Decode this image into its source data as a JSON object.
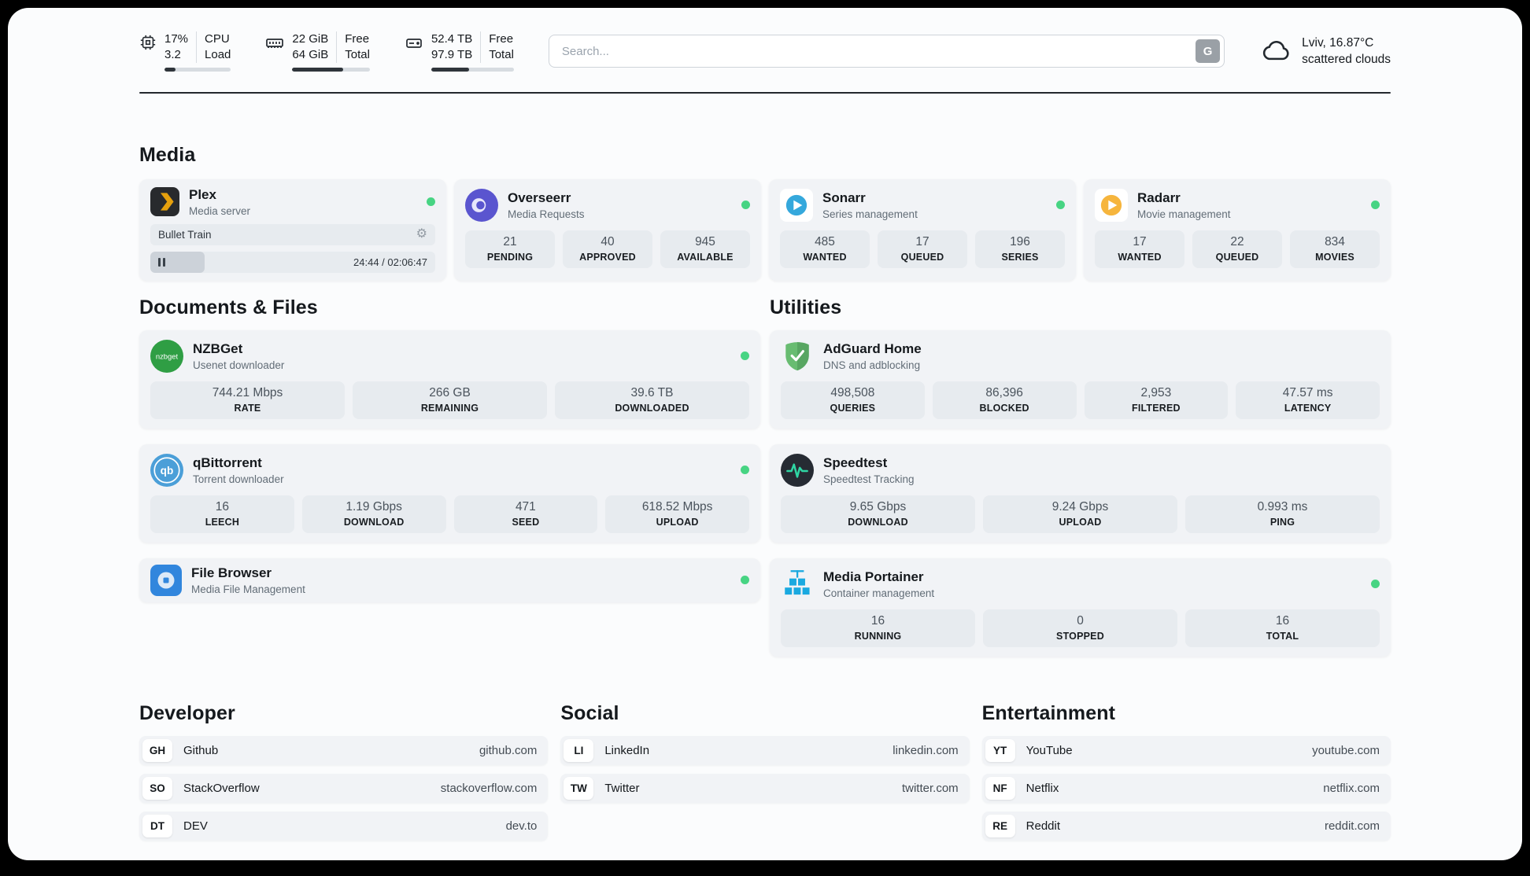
{
  "topbar": {
    "cpu": {
      "value_top": "17%",
      "value_bottom": "3.2",
      "label_top": "CPU",
      "label_bottom": "Load",
      "progress_percent": 17
    },
    "memory": {
      "value_top": "22 GiB",
      "value_bottom": "64 GiB",
      "label_top": "Free",
      "label_bottom": "Total",
      "progress_percent": 66
    },
    "storage": {
      "value_top": "52.4 TB",
      "value_bottom": "97.9 TB",
      "label_top": "Free",
      "label_bottom": "Total",
      "progress_percent": 46
    },
    "search": {
      "placeholder": "Search...",
      "engine_letter": "G"
    },
    "weather": {
      "location": "Lviv, 16.87°C",
      "condition": "scattered clouds"
    }
  },
  "sections": {
    "media": "Media",
    "documents": "Documents & Files",
    "utilities": "Utilities",
    "developer": "Developer",
    "social": "Social",
    "entertainment": "Entertainment"
  },
  "icons": {
    "gear": "⚙"
  },
  "apps": {
    "plex": {
      "name": "Plex",
      "subtitle": "Media server",
      "now_playing": "Bullet Train",
      "time": "24:44 / 02:06:47",
      "progress_percent": 19
    },
    "overseerr": {
      "name": "Overseerr",
      "subtitle": "Media Requests",
      "stats": [
        {
          "value": "21",
          "label": "PENDING"
        },
        {
          "value": "40",
          "label": "APPROVED"
        },
        {
          "value": "945",
          "label": "AVAILABLE"
        }
      ]
    },
    "sonarr": {
      "name": "Sonarr",
      "subtitle": "Series management",
      "stats": [
        {
          "value": "485",
          "label": "WANTED"
        },
        {
          "value": "17",
          "label": "QUEUED"
        },
        {
          "value": "196",
          "label": "SERIES"
        }
      ]
    },
    "radarr": {
      "name": "Radarr",
      "subtitle": "Movie management",
      "stats": [
        {
          "value": "17",
          "label": "WANTED"
        },
        {
          "value": "22",
          "label": "QUEUED"
        },
        {
          "value": "834",
          "label": "MOVIES"
        }
      ]
    },
    "nzbget": {
      "name": "NZBGet",
      "subtitle": "Usenet downloader",
      "icon_text": "nzbget",
      "stats": [
        {
          "value": "744.21 Mbps",
          "label": "RATE"
        },
        {
          "value": "266 GB",
          "label": "REMAINING"
        },
        {
          "value": "39.6 TB",
          "label": "DOWNLOADED"
        }
      ]
    },
    "qbittorrent": {
      "name": "qBittorrent",
      "subtitle": "Torrent downloader",
      "icon_text": "qb",
      "stats": [
        {
          "value": "16",
          "label": "LEECH"
        },
        {
          "value": "1.19 Gbps",
          "label": "DOWNLOAD"
        },
        {
          "value": "471",
          "label": "SEED"
        },
        {
          "value": "618.52 Mbps",
          "label": "UPLOAD"
        }
      ]
    },
    "filebrowser": {
      "name": "File Browser",
      "subtitle": "Media File Management"
    },
    "adguard": {
      "name": "AdGuard Home",
      "subtitle": "DNS and adblocking",
      "stats": [
        {
          "value": "498,508",
          "label": "QUERIES"
        },
        {
          "value": "86,396",
          "label": "BLOCKED"
        },
        {
          "value": "2,953",
          "label": "FILTERED"
        },
        {
          "value": "47.57 ms",
          "label": "LATENCY"
        }
      ]
    },
    "speedtest": {
      "name": "Speedtest",
      "subtitle": "Speedtest Tracking",
      "stats": [
        {
          "value": "9.65 Gbps",
          "label": "DOWNLOAD"
        },
        {
          "value": "9.24 Gbps",
          "label": "UPLOAD"
        },
        {
          "value": "0.993 ms",
          "label": "PING"
        }
      ]
    },
    "portainer": {
      "name": "Media Portainer",
      "subtitle": "Container management",
      "stats": [
        {
          "value": "16",
          "label": "RUNNING"
        },
        {
          "value": "0",
          "label": "STOPPED"
        },
        {
          "value": "16",
          "label": "TOTAL"
        }
      ]
    }
  },
  "bookmarks": {
    "developer": [
      {
        "abbr": "GH",
        "name": "Github",
        "url": "github.com"
      },
      {
        "abbr": "SO",
        "name": "StackOverflow",
        "url": "stackoverflow.com"
      },
      {
        "abbr": "DT",
        "name": "DEV",
        "url": "dev.to"
      }
    ],
    "social": [
      {
        "abbr": "LI",
        "name": "LinkedIn",
        "url": "linkedin.com"
      },
      {
        "abbr": "TW",
        "name": "Twitter",
        "url": "twitter.com"
      }
    ],
    "entertainment": [
      {
        "abbr": "YT",
        "name": "YouTube",
        "url": "youtube.com"
      },
      {
        "abbr": "NF",
        "name": "Netflix",
        "url": "netflix.com"
      },
      {
        "abbr": "RE",
        "name": "Reddit",
        "url": "reddit.com"
      }
    ]
  },
  "colors": {
    "status_online": "#47d483",
    "plex_accent": "#e5a00d"
  }
}
